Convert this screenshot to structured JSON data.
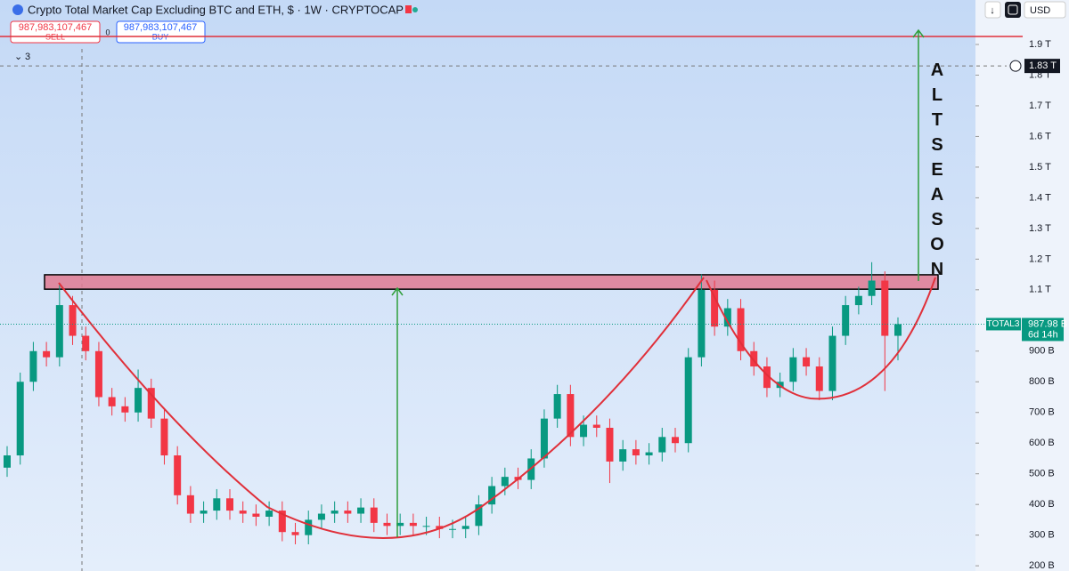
{
  "header": {
    "title": "Crypto Total Market Cap Excluding BTC and ETH, $ · 1W · CRYPTOCAP",
    "sell_price": "987,983,107,467",
    "sell_label": "SELL",
    "spread": 0,
    "buy_price": "987,983,107,467",
    "buy_label": "BUY",
    "indicator_count": 3,
    "currency": "USD"
  },
  "chart_data": {
    "type": "candlestick",
    "title": "ALTSEASON",
    "up_color": "#089981",
    "down_color": "#f23645",
    "open": [
      520,
      560,
      800,
      900,
      880,
      1050,
      950,
      900,
      750,
      720,
      700,
      780,
      680,
      560,
      430,
      370,
      380,
      420,
      380,
      370,
      360,
      380,
      310,
      300,
      350,
      370,
      380,
      370,
      390,
      340,
      330,
      340,
      330,
      330,
      320,
      320,
      330,
      400,
      460,
      490,
      480,
      550,
      680,
      760,
      620,
      660,
      650,
      540,
      580,
      560,
      570,
      620,
      600,
      880,
      1100,
      980,
      1040,
      900,
      850,
      780,
      800,
      880,
      850,
      770,
      950,
      1050,
      1080,
      1130,
      950
    ],
    "high": [
      590,
      830,
      930,
      930,
      1120,
      1080,
      980,
      930,
      780,
      750,
      840,
      810,
      710,
      590,
      460,
      410,
      450,
      450,
      410,
      400,
      410,
      410,
      340,
      380,
      400,
      410,
      410,
      420,
      420,
      370,
      370,
      370,
      360,
      360,
      350,
      360,
      430,
      490,
      520,
      520,
      580,
      710,
      790,
      790,
      690,
      690,
      680,
      610,
      610,
      600,
      650,
      650,
      910,
      1150,
      1130,
      1070,
      1070,
      930,
      880,
      830,
      910,
      910,
      880,
      980,
      1080,
      1110,
      1190,
      1160,
      1010
    ],
    "low": [
      490,
      530,
      770,
      850,
      850,
      920,
      870,
      720,
      690,
      670,
      670,
      650,
      530,
      400,
      340,
      340,
      350,
      350,
      340,
      330,
      330,
      280,
      270,
      270,
      320,
      340,
      340,
      340,
      310,
      300,
      300,
      300,
      300,
      290,
      290,
      290,
      300,
      370,
      430,
      450,
      450,
      520,
      650,
      590,
      590,
      620,
      470,
      510,
      530,
      530,
      540,
      570,
      570,
      850,
      950,
      950,
      870,
      820,
      750,
      750,
      770,
      820,
      740,
      740,
      920,
      1020,
      1050,
      770,
      870
    ],
    "close": [
      560,
      800,
      900,
      880,
      1050,
      950,
      900,
      750,
      720,
      700,
      780,
      680,
      560,
      430,
      370,
      380,
      420,
      380,
      370,
      360,
      380,
      310,
      300,
      350,
      370,
      380,
      370,
      390,
      340,
      330,
      340,
      330,
      330,
      320,
      320,
      330,
      400,
      460,
      490,
      480,
      550,
      680,
      760,
      620,
      660,
      650,
      540,
      580,
      560,
      570,
      620,
      600,
      880,
      1100,
      980,
      1040,
      900,
      850,
      780,
      800,
      880,
      850,
      770,
      950,
      1050,
      1080,
      1130,
      950,
      988
    ],
    "ylim": [
      183,
      2045
    ],
    "yticks": [
      {
        "value": 200,
        "label": "200 B"
      },
      {
        "value": 300,
        "label": "300 B"
      },
      {
        "value": 400,
        "label": "400 B"
      },
      {
        "value": 500,
        "label": "500 B"
      },
      {
        "value": 600,
        "label": "600 B"
      },
      {
        "value": 700,
        "label": "700 B"
      },
      {
        "value": 800,
        "label": "800 B"
      },
      {
        "value": 900,
        "label": "900 B"
      },
      {
        "value": 1100,
        "label": "1.1 T"
      },
      {
        "value": 1200,
        "label": "1.2 T"
      },
      {
        "value": 1300,
        "label": "1.3 T"
      },
      {
        "value": 1400,
        "label": "1.4 T"
      },
      {
        "value": 1500,
        "label": "1.5 T"
      },
      {
        "value": 1600,
        "label": "1.6 T"
      },
      {
        "value": 1700,
        "label": "1.7 T"
      },
      {
        "value": 1800,
        "label": "1.8 T"
      },
      {
        "value": 1900,
        "label": "1.9 T"
      }
    ],
    "resistance_zone": [
      1102,
      1149
    ],
    "target_line": 1926,
    "crosshair": {
      "value": 1830,
      "label": "1.83 T"
    },
    "symbol_label": "TOTAL3",
    "last_price": {
      "value": 987.98,
      "label": "987.98 B"
    },
    "countdown": "6d 14h"
  }
}
